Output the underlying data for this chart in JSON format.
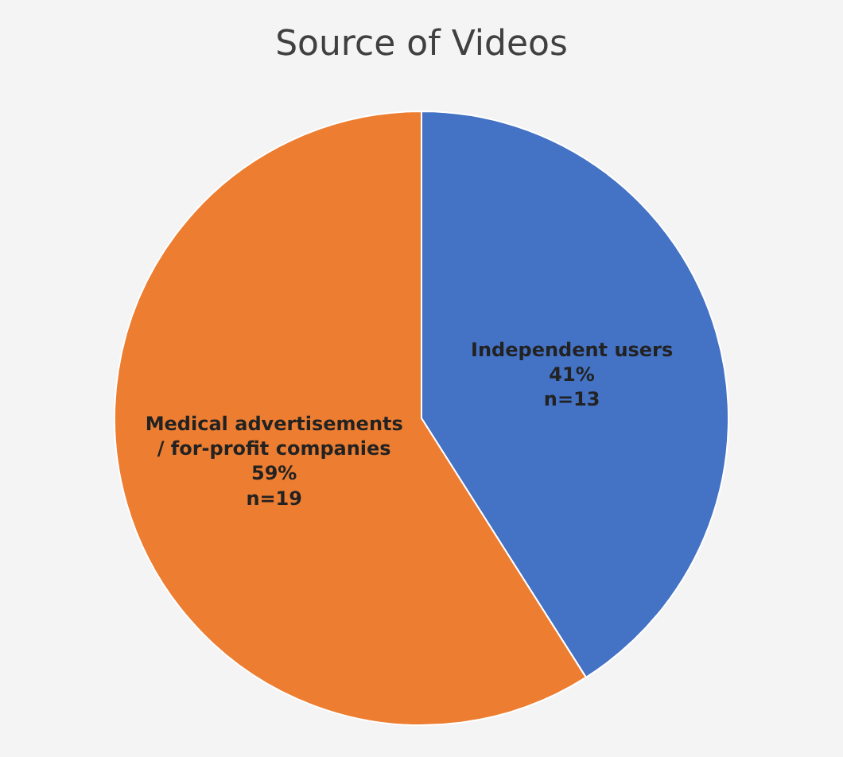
{
  "chart_data": {
    "type": "pie",
    "title": "Source of Videos",
    "categories": [
      "Independent users",
      "Medical advertisements / for-profit companies"
    ],
    "values": [
      41,
      59
    ],
    "value_labels": [
      "41%\nn=13",
      "59%\nn=19"
    ],
    "colors": [
      "#4472c4",
      "#ed7d31"
    ],
    "legend": false
  }
}
